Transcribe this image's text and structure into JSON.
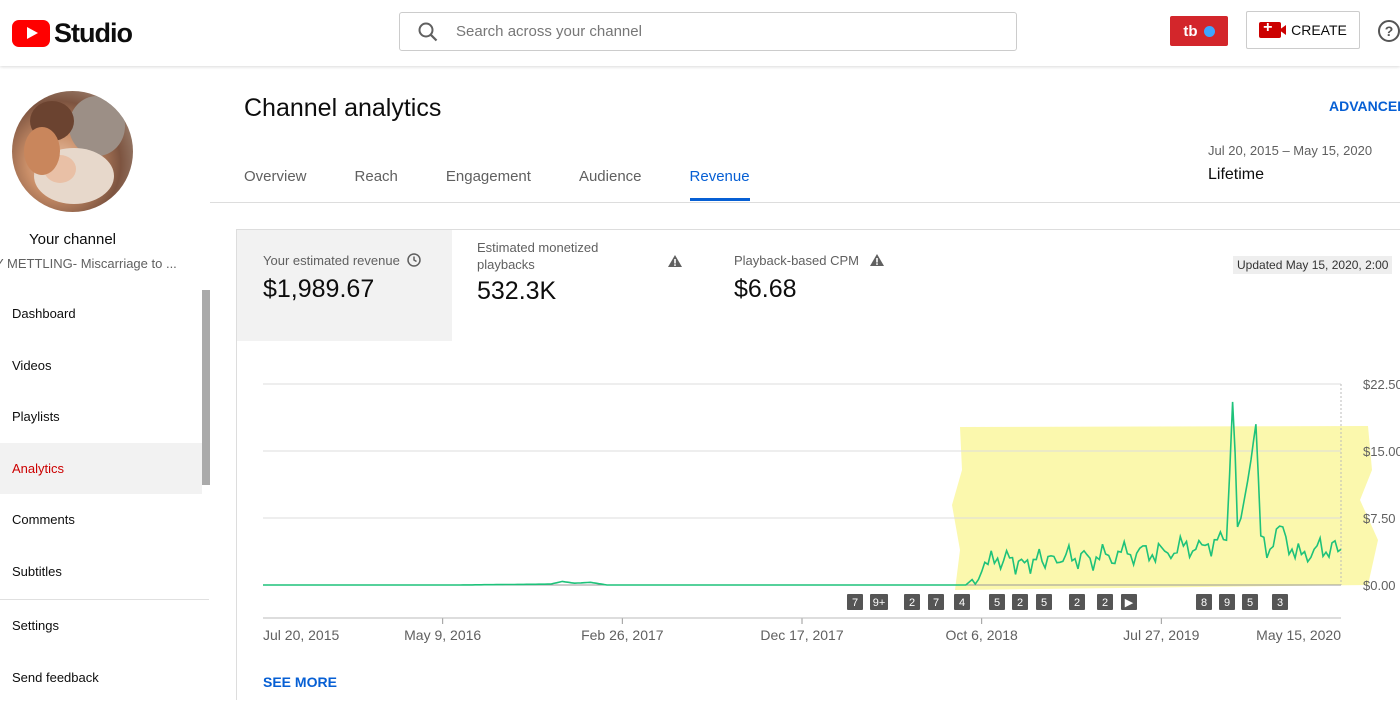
{
  "header": {
    "logo_text": "Studio",
    "search_placeholder": "Search across your channel",
    "tb_label": "tb",
    "create_label": "CREATE",
    "help_glyph": "?"
  },
  "sidebar": {
    "channel_name": "Your channel",
    "channel_subtitle": "Y METTLING- Miscarriage to ...",
    "items": [
      {
        "label": "Dashboard"
      },
      {
        "label": "Videos"
      },
      {
        "label": "Playlists"
      },
      {
        "label": "Analytics",
        "active": true
      },
      {
        "label": "Comments"
      },
      {
        "label": "Subtitles"
      },
      {
        "label": "Settings"
      },
      {
        "label": "Send feedback"
      }
    ]
  },
  "main": {
    "title": "Channel analytics",
    "advanced": "ADVANCED",
    "tabs": [
      {
        "label": "Overview"
      },
      {
        "label": "Reach"
      },
      {
        "label": "Engagement"
      },
      {
        "label": "Audience"
      },
      {
        "label": "Revenue",
        "active": true
      }
    ],
    "date_range": "Jul 20, 2015 – May 15, 2020",
    "period": "Lifetime",
    "see_more": "SEE MORE"
  },
  "metrics": [
    {
      "label": "Your estimated revenue",
      "value": "$1,989.67",
      "icon": "clock-icon"
    },
    {
      "label": "Estimated monetized playbacks",
      "value": "532.3K",
      "icon": "warning-icon"
    },
    {
      "label": "Playback-based CPM",
      "value": "$6.68",
      "icon": "warning-icon"
    }
  ],
  "updated": "Updated May 15, 2020, 2:00",
  "colors": {
    "accent": "#065fd4",
    "active_nav": "#cc0000",
    "line": "#1ec27a",
    "highlight": "#fbf7a4"
  },
  "chart_data": {
    "type": "line",
    "y_ticks": [
      "$22.50",
      "$15.00",
      "$7.50",
      "$0.00"
    ],
    "ylim": [
      0,
      22.5
    ],
    "x_ticks": [
      "Jul 20, 2015",
      "May 9, 2016",
      "Feb 26, 2017",
      "Dec 17, 2017",
      "Oct 6, 2018",
      "Jul 27, 2019",
      "May 15, 2020"
    ],
    "markers": [
      "7",
      "9+",
      "2",
      "7",
      "4",
      "5",
      "2",
      "5",
      "2",
      "2",
      "▶",
      "8",
      "9",
      "5",
      "3"
    ],
    "series": [
      {
        "values_by_date": [
          [
            "2015-07-20",
            0
          ],
          [
            "2016-06-01",
            0
          ],
          [
            "2016-11-01",
            0.1
          ],
          [
            "2016-11-20",
            0.4
          ],
          [
            "2016-12-10",
            0.2
          ],
          [
            "2017-01-05",
            0.3
          ],
          [
            "2017-02-01",
            0
          ],
          [
            "2018-09-10",
            0
          ],
          [
            "2018-10-06",
            1.5
          ],
          [
            "2018-11-01",
            3.0
          ],
          [
            "2018-12-15",
            2.5
          ],
          [
            "2019-02-01",
            3.2
          ],
          [
            "2019-04-01",
            3.0
          ],
          [
            "2019-06-01",
            3.5
          ],
          [
            "2019-08-01",
            3.8
          ],
          [
            "2019-10-01",
            4.5
          ],
          [
            "2019-11-10",
            5.0
          ],
          [
            "2019-11-20",
            20.5
          ],
          [
            "2019-11-28",
            6.5
          ],
          [
            "2019-12-20",
            14.0
          ],
          [
            "2019-12-28",
            18.0
          ],
          [
            "2020-01-05",
            5.5
          ],
          [
            "2020-01-20",
            4.0
          ],
          [
            "2020-02-10",
            6.5
          ],
          [
            "2020-03-01",
            3.0
          ],
          [
            "2020-04-01",
            4.0
          ],
          [
            "2020-05-15",
            4.0
          ]
        ]
      }
    ]
  }
}
